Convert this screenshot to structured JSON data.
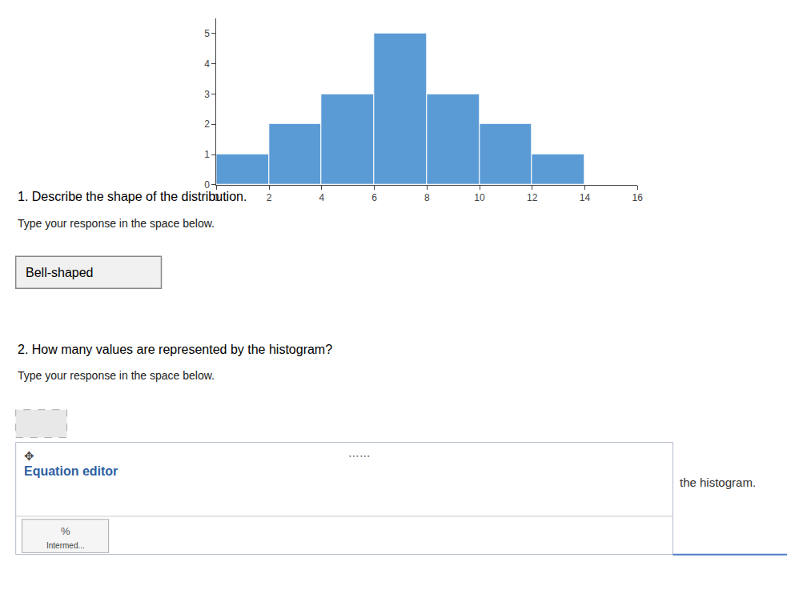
{
  "chart_data": {
    "type": "histogram",
    "bins": [
      0,
      2,
      4,
      6,
      8,
      10,
      12,
      14
    ],
    "values": [
      1,
      2,
      3,
      5,
      3,
      2,
      1
    ],
    "color": "#5b9bd5",
    "xlim": [
      0,
      16
    ],
    "xticks": [
      0,
      2,
      4,
      6,
      8,
      10,
      12,
      14,
      16
    ],
    "ylim": [
      0,
      5.5
    ],
    "yticks": [
      0,
      1,
      2,
      3,
      4,
      5
    ],
    "grid": false,
    "annotations": [
      "1. Describe the shape of the distribution.",
      "Type your response in the space below.",
      "Bell-shaped",
      "2. How many values are represented by the histogram?",
      "Type your response in the space below.",
      "✥",
      "⋯⋯",
      "Equation editor",
      "%",
      "Intermed...",
      "the histogram."
    ]
  }
}
